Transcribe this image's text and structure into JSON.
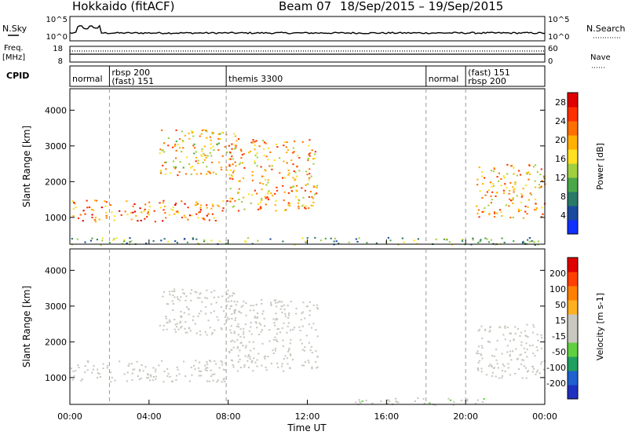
{
  "header": {
    "station_title": "Hokkaido (fitACF)",
    "beam_title": "Beam 07",
    "date_range": "18/Sep/2015 – 19/Sep/2015"
  },
  "top_panels": {
    "nsky_label": "N.Sky",
    "nsearch_label": "N.Search",
    "freq_label_1": "Freq.",
    "freq_label_2": "[MHz]",
    "nave_label": "Nave",
    "cpid_label": "CPID",
    "nsky_ticks": [
      "10^5",
      "10^0"
    ],
    "nsearch_ticks": [
      "10^5",
      "10^0"
    ],
    "freq_ticks": [
      "18",
      "8"
    ],
    "nave_ticks": [
      "60",
      "0"
    ],
    "cpid_segments": [
      {
        "start_h": 0.0,
        "lines": [
          "normal"
        ]
      },
      {
        "start_h": 2.0,
        "lines": [
          "rbsp 200",
          "(fast) 151"
        ]
      },
      {
        "start_h": 7.9,
        "lines": [
          "themis 3300"
        ]
      },
      {
        "start_h": 18.0,
        "lines": [
          "normal"
        ]
      },
      {
        "start_h": 20.0,
        "lines": [
          "(fast) 151",
          "rbsp 200"
        ]
      }
    ]
  },
  "chart_data": [
    {
      "type": "heatmap",
      "name": "power_panel",
      "ylabel": "Slant Range [km]",
      "xlabel": "",
      "yticks": [
        1000,
        2000,
        3000,
        4000
      ],
      "ylim": [
        250,
        4600
      ],
      "colorbar_label": "Power [dB]",
      "colorbar_ticks": [
        4,
        8,
        12,
        16,
        20,
        24,
        28
      ],
      "colorbar_range": [
        0,
        30
      ],
      "colors": [
        "#1030ff",
        "#1a4aa0",
        "#2a7a6a",
        "#4aa84a",
        "#a0d040",
        "#ffe020",
        "#ffb000",
        "#ff7000",
        "#ff3000",
        "#e00000"
      ],
      "scatter_regions": [
        {
          "t0": 0.0,
          "t1": 8.0,
          "r0": 900,
          "r1": 1500,
          "level": 22
        },
        {
          "t0": 4.5,
          "t1": 8.5,
          "r0": 2200,
          "r1": 3500,
          "level": 18
        },
        {
          "t0": 8.0,
          "t1": 12.5,
          "r0": 1200,
          "r1": 3200,
          "level": 20
        },
        {
          "t0": 20.5,
          "t1": 24.0,
          "r0": 1000,
          "r1": 2500,
          "level": 20
        },
        {
          "t0": 0.0,
          "t1": 24.0,
          "r0": 250,
          "r1": 450,
          "level": 10
        }
      ]
    },
    {
      "type": "heatmap",
      "name": "velocity_panel",
      "ylabel": "Slant Range [km]",
      "xlabel": "Time UT",
      "yticks": [
        1000,
        2000,
        3000,
        4000
      ],
      "ylim": [
        250,
        4600
      ],
      "colorbar_label": "Velocity [m s-1]",
      "colorbar_ticks": [
        200,
        100,
        50,
        15,
        -15,
        -50,
        -100,
        -200
      ],
      "colorbar_range": [
        -250,
        250
      ],
      "colors": [
        "#2030c0",
        "#2060d0",
        "#20a060",
        "#60d040",
        "#c8c8c0",
        "#c8c8c0",
        "#ffb020",
        "#ff8000",
        "#ff4000",
        "#e00000"
      ],
      "scatter_regions": [
        {
          "t0": 0.0,
          "t1": 8.0,
          "r0": 900,
          "r1": 1500,
          "level": 0
        },
        {
          "t0": 4.5,
          "t1": 8.5,
          "r0": 2200,
          "r1": 3500,
          "level": -30
        },
        {
          "t0": 8.0,
          "t1": 12.5,
          "r0": 1200,
          "r1": 3200,
          "level": 0
        },
        {
          "t0": 20.5,
          "t1": 24.0,
          "r0": 1000,
          "r1": 2500,
          "level": 0
        },
        {
          "t0": 14.0,
          "t1": 21.0,
          "r0": 250,
          "r1": 450,
          "level": -40
        }
      ]
    }
  ],
  "xaxis": {
    "tick_labels": [
      "00:00",
      "04:00",
      "08:00",
      "12:00",
      "16:00",
      "20:00",
      "00:00"
    ],
    "label": "Time UT"
  }
}
